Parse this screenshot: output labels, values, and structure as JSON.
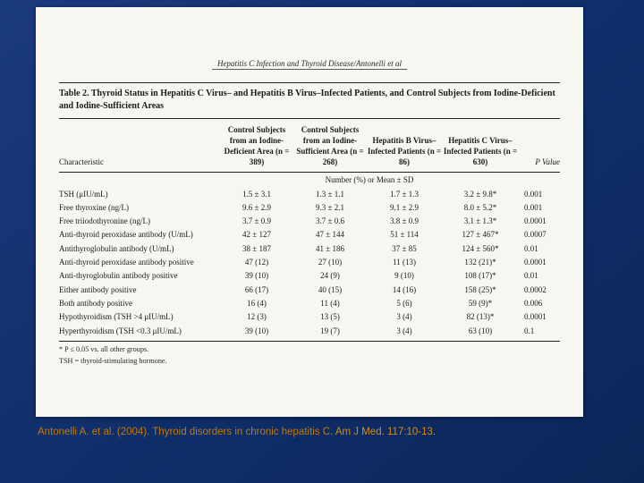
{
  "colors": {
    "slide_background": "#10306d",
    "panel_background": "#f7f6f1",
    "citation_text": "#bd7a10",
    "rule": "#222222"
  },
  "slide": {
    "running_head": "Hepatitis C Infection and Thyroid Disease/Antonelli et al",
    "citation": {
      "prefix": "Antonelli A. et al. (2004). Thyroid disorders in chronic hepatitis C. ",
      "journal": "Am J Med. 117:10-13."
    }
  },
  "table": {
    "title": "Table 2.  Thyroid Status in Hepatitis C Virus– and Hepatitis B Virus–Infected Patients, and Control Subjects from Iodine-Deficient and Iodine-Sufficient Areas",
    "col_headers": [
      "Characteristic",
      "Control Subjects from an Iodine-Deficient Area (n = 389)",
      "Control Subjects from an Iodine-Sufficient Area (n = 268)",
      "Hepatitis B Virus–Infected Patients (n = 86)",
      "Hepatitis C Virus–Infected Patients (n = 630)",
      "P Value"
    ],
    "subheader": "Number (%) or Mean ± SD",
    "rows": [
      [
        "TSH (μIU/mL)",
        "1.5 ± 3.1",
        "1.3 ± 1.1",
        "1.7 ± 1.3",
        "3.2 ± 9.8*",
        "0.001"
      ],
      [
        "Free thyroxine (ng/L)",
        "9.6 ± 2.9",
        "9.3 ± 2.1",
        "9.1 ± 2.9",
        "8.0 ± 5.2*",
        "0.001"
      ],
      [
        "Free triiodothyronine (ng/L)",
        "3.7 ± 0.9",
        "3.7 ± 0.6",
        "3.8 ± 0.9",
        "3.1 ± 1.3*",
        "0.0001"
      ],
      [
        "Anti-thyroid peroxidase antibody (U/mL)",
        "42 ± 127",
        "47 ± 144",
        "51 ± 114",
        "127 ± 467*",
        "0.0007"
      ],
      [
        "Antithyroglobulin antibody (U/mL)",
        "38 ± 187",
        "41 ± 186",
        "37 ± 85",
        "124 ± 560*",
        "0.01"
      ],
      [
        "Anti-thyroid peroxidase antibody positive",
        "47 (12)",
        "27 (10)",
        "11 (13)",
        "132 (21)*",
        "0.0001"
      ],
      [
        "Anti-thyroglobulin antibody positive",
        "39 (10)",
        "24 (9)",
        "9 (10)",
        "108 (17)*",
        "0.01"
      ],
      [
        "Either antibody positive",
        "66 (17)",
        "40 (15)",
        "14 (16)",
        "158 (25)*",
        "0.0002"
      ],
      [
        "Both antibody positive",
        "16 (4)",
        "11 (4)",
        "5 (6)",
        "59 (9)*",
        "0.006"
      ],
      [
        "Hypothyroidism (TSH >4 μIU/mL)",
        "12 (3)",
        "13 (5)",
        "3 (4)",
        "82 (13)*",
        "0.0001"
      ],
      [
        "Hyperthyroidism (TSH <0.3 μIU/mL)",
        "39 (10)",
        "19 (7)",
        "3 (4)",
        "63 (10)",
        "0.1"
      ]
    ],
    "footnotes": [
      "* P ≤ 0.05 vs. all other groups.",
      "TSH = thyroid-stimulating hormone."
    ]
  },
  "chart_data": {
    "type": "table",
    "title": "Table 2. Thyroid Status in Hepatitis C Virus– and Hepatitis B Virus–Infected Patients, and Control Subjects from Iodine-Deficient and Iodine-Sufficient Areas",
    "columns": [
      "Characteristic",
      "Control Subjects from an Iodine-Deficient Area (n = 389)",
      "Control Subjects from an Iodine-Sufficient Area (n = 268)",
      "Hepatitis B Virus–Infected Patients (n = 86)",
      "Hepatitis C Virus–Infected Patients (n = 630)",
      "P Value"
    ]
  }
}
